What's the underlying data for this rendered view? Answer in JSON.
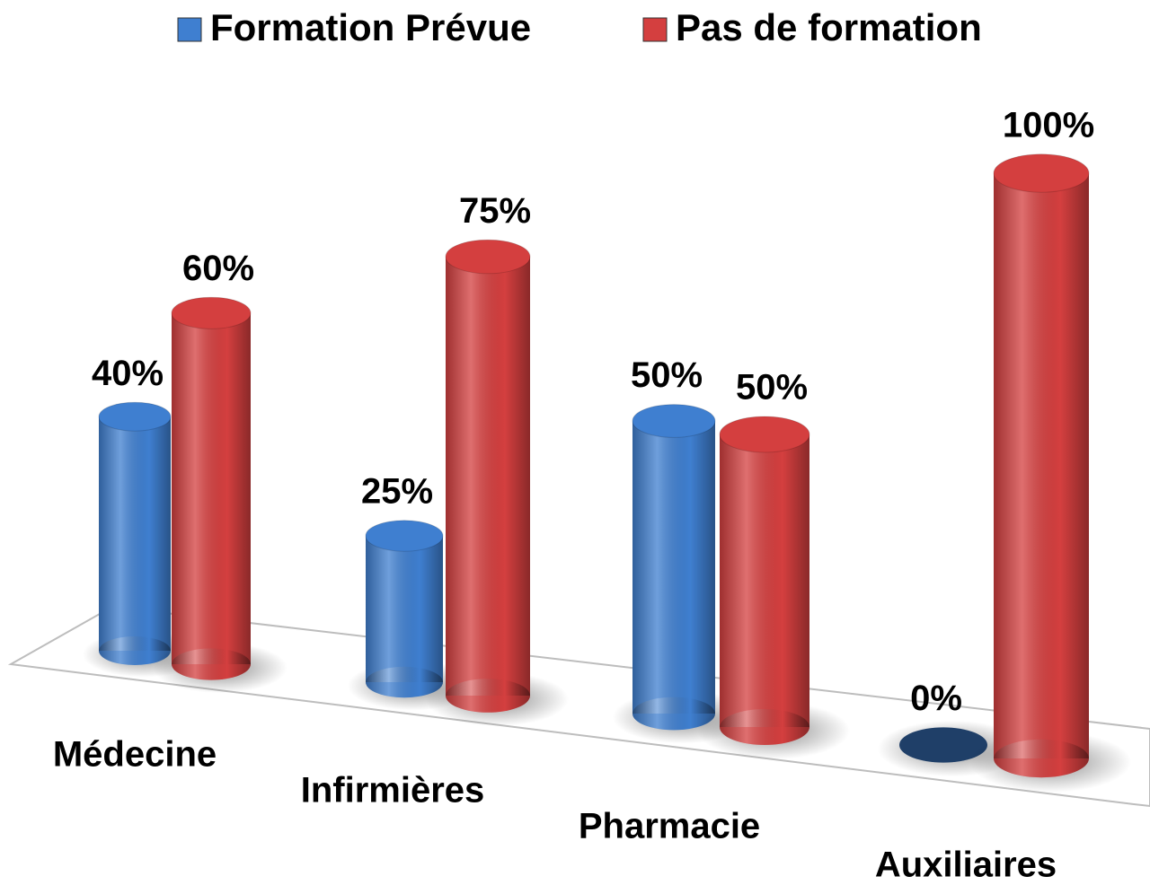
{
  "chart_data": {
    "type": "bar",
    "categories": [
      "Médecine",
      "Infirmières",
      "Pharmacie",
      "Auxiliaires"
    ],
    "series": [
      {
        "name": "Formation Prévue",
        "color": "#3f7fd0",
        "values": [
          40,
          25,
          50,
          0
        ],
        "value_labels": [
          "40%",
          "25%",
          "50%",
          "0%"
        ]
      },
      {
        "name": "Pas de formation",
        "color": "#d43f3f",
        "values": [
          60,
          75,
          50,
          100
        ],
        "value_labels": [
          "60%",
          "75%",
          "50%",
          "100%"
        ]
      }
    ],
    "legend": "top"
  }
}
